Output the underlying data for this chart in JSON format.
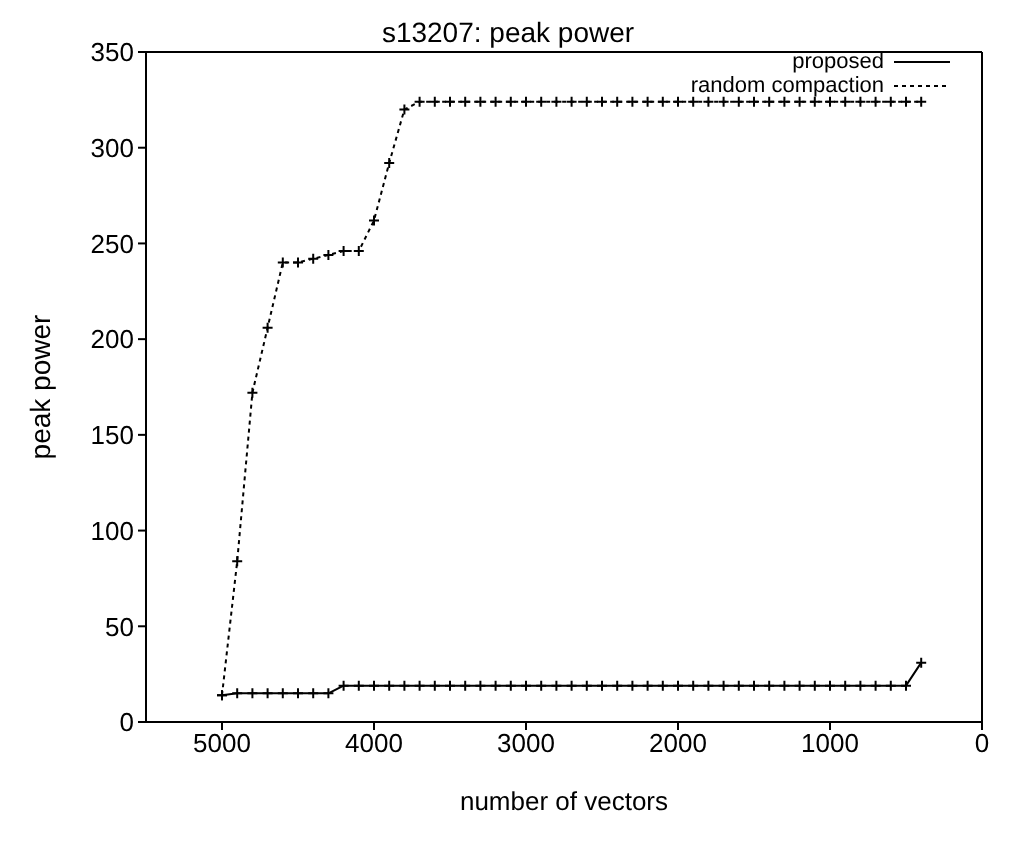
{
  "chart_data": {
    "type": "line",
    "title": "s13207: peak power",
    "xlabel": "number of vectors",
    "ylabel": "peak power",
    "x": [
      5000,
      4900,
      4800,
      4700,
      4600,
      4500,
      4400,
      4300,
      4200,
      4100,
      4000,
      3900,
      3800,
      3700,
      3600,
      3500,
      3400,
      3300,
      3200,
      3100,
      3000,
      2900,
      2800,
      2700,
      2600,
      2500,
      2400,
      2300,
      2200,
      2100,
      2000,
      1900,
      1800,
      1700,
      1600,
      1500,
      1400,
      1300,
      1200,
      1100,
      1000,
      900,
      800,
      700,
      600,
      500,
      400
    ],
    "series": [
      {
        "name": "proposed",
        "color": "#000000",
        "marker": "cross",
        "line_style": "solid",
        "values": [
          14,
          15,
          15,
          15,
          15,
          15,
          15,
          15,
          19,
          19,
          19,
          19,
          19,
          19,
          19,
          19,
          19,
          19,
          19,
          19,
          19,
          19,
          19,
          19,
          19,
          19,
          19,
          19,
          19,
          19,
          19,
          19,
          19,
          19,
          19,
          19,
          19,
          19,
          19,
          19,
          19,
          19,
          19,
          19,
          19,
          19,
          31
        ]
      },
      {
        "name": "random compaction",
        "color": "#000000",
        "marker": "cross",
        "line_style": "dotted",
        "values": [
          14,
          84,
          172,
          206,
          240,
          240,
          242,
          244,
          246,
          246,
          262,
          292,
          320,
          324,
          324,
          324,
          324,
          324,
          324,
          324,
          324,
          324,
          324,
          324,
          324,
          324,
          324,
          324,
          324,
          324,
          324,
          324,
          324,
          324,
          324,
          324,
          324,
          324,
          324,
          324,
          324,
          324,
          324,
          324,
          324,
          324,
          324
        ]
      }
    ],
    "xlim": [
      5500,
      0
    ],
    "xticks": [
      5000,
      4000,
      3000,
      2000,
      1000,
      0
    ],
    "ylim": [
      0,
      350
    ],
    "yticks": [
      0,
      50,
      100,
      150,
      200,
      250,
      300,
      350
    ],
    "legend": "top right"
  }
}
